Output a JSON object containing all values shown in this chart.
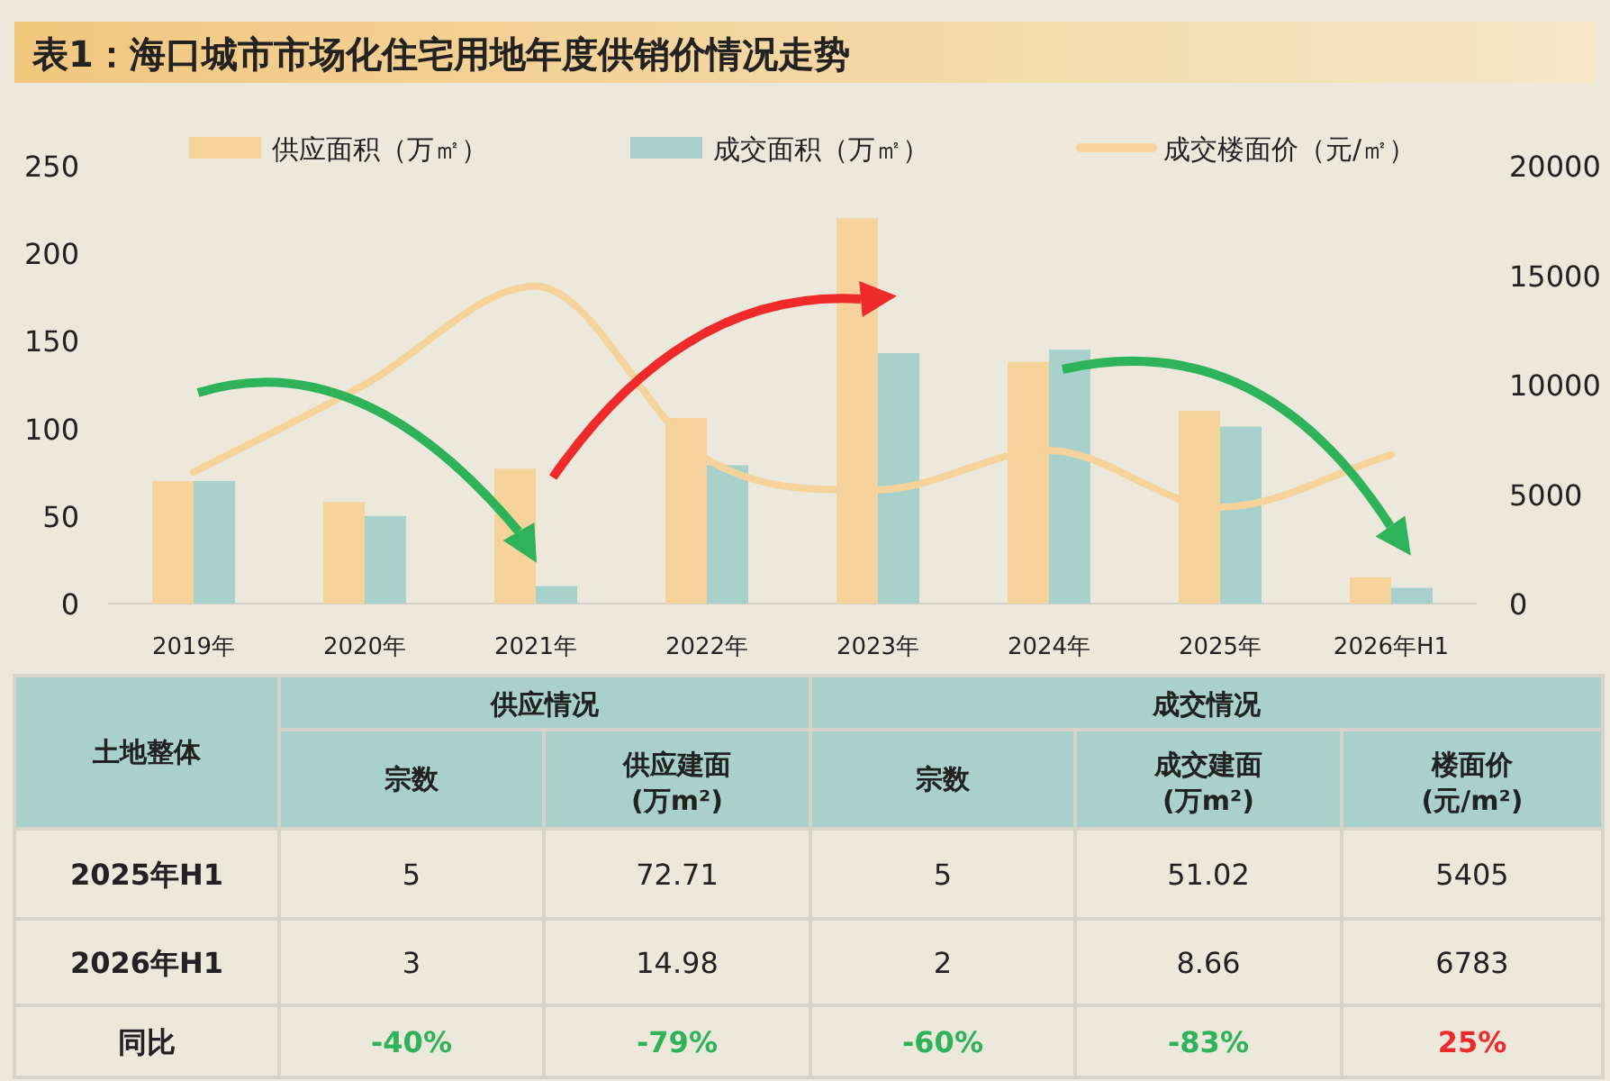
{
  "chart_data": [
    {
      "type": "bar",
      "title": "表1：海口城市市场化住宅用地年度供销价情况走势",
      "categories": [
        "2019年",
        "2020年",
        "2021年",
        "2022年",
        "2023年",
        "2024年",
        "2025年",
        "2026年H1"
      ],
      "series": [
        {
          "name": "供应面积（万㎡）",
          "color": "#f5d39b",
          "values": [
            70,
            58,
            77,
            106,
            220,
            138,
            110,
            15
          ]
        },
        {
          "name": "成交面积（万㎡）",
          "color": "#a8d1cc",
          "values": [
            70,
            50,
            10,
            79,
            143,
            145,
            101,
            9
          ]
        },
        {
          "name": "成交楼面价（元/㎡）",
          "type": "line",
          "axis": "y2",
          "color": "#f5d39b",
          "values": [
            6000,
            10000,
            14500,
            6600,
            5200,
            7000,
            4400,
            6800
          ]
        }
      ],
      "ylim": [
        0,
        250
      ],
      "yticks": [
        0,
        50,
        100,
        150,
        200,
        250
      ],
      "y2lim": [
        0,
        20000
      ],
      "y2ticks": [
        0,
        5000,
        10000,
        15000,
        20000
      ],
      "legend": "top"
    },
    {
      "type": "other",
      "annotations": [
        "土地整体",
        "供应情况",
        "成交情况",
        "宗数",
        "供应建面(万m²)",
        "宗数",
        "成交建面(万m²)",
        "楼面价(元/m²)",
        "2025年H1",
        "5",
        "72.71",
        "5",
        "51.02",
        "5405",
        "2026年H1",
        "3",
        "14.98",
        "2",
        "8.66",
        "6783",
        "同比",
        "-40%",
        "-79%",
        "-60%",
        "-83%",
        "25%"
      ]
    }
  ]
}
